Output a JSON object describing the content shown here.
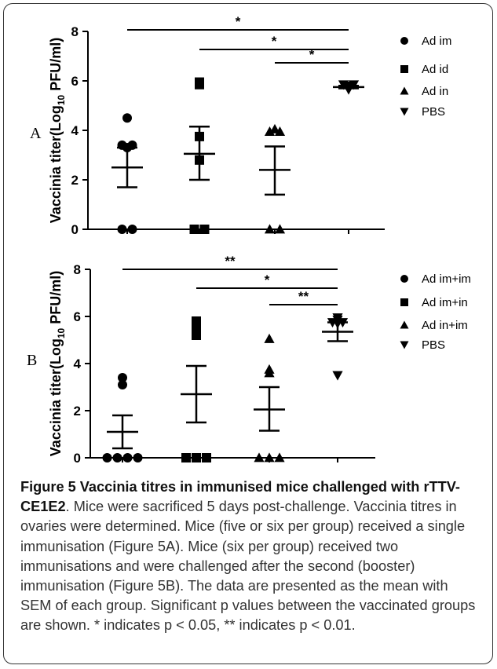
{
  "caption": {
    "title": "Figure 5 Vaccinia titres in immunised mice challenged with rTTV-CE1E2",
    "text": ". Mice were sacrificed 5 days post-challenge. Vaccinia titres in ovaries were determined. Mice (five or six per group) received a single immunisation (Figure 5A). Mice (six per group) received two immunisations and were challenged after the second (booster) immunisation (Figure 5B). The data are presented as the mean with SEM of each group. Significant p values between the vaccinated groups are shown. * indicates p < 0.05, ** indicates p < 0.01."
  },
  "chart_data": [
    {
      "type": "scatter",
      "panel_label": "A",
      "ylabel_prefix": "Vaccinia titer(Log",
      "ylabel_sub": "10",
      "ylabel_suffix": " PFU/ml)",
      "ylim": [
        0,
        8
      ],
      "yticks": [
        "0",
        "2",
        "4",
        "6",
        "8"
      ],
      "series": [
        {
          "name": "Ad im",
          "marker": "circle",
          "values": [
            4.5,
            3.4,
            3.4,
            3.3,
            0,
            0
          ],
          "mean": 2.5,
          "sem_low": 1.7,
          "sem_high": 3.3
        },
        {
          "name": "Ad id",
          "marker": "square",
          "values": [
            5.95,
            5.85,
            3.75,
            2.8,
            0,
            0
          ],
          "mean": 3.05,
          "sem_low": 2.0,
          "sem_high": 4.15
        },
        {
          "name": "Ad in",
          "marker": "triangle-up",
          "values": [
            3.95,
            3.95,
            4.05,
            0,
            0
          ],
          "mean": 2.4,
          "sem_low": 1.4,
          "sem_high": 3.35
        },
        {
          "name": "PBS",
          "marker": "triangle-down",
          "values": [
            5.85,
            5.85,
            5.8,
            5.75,
            5.7,
            5.65
          ],
          "mean": 5.75,
          "sem_low": 5.7,
          "sem_high": 5.8
        }
      ],
      "significance": [
        {
          "from": 0,
          "to": 3,
          "label": "*"
        },
        {
          "from": 1,
          "to": 3,
          "label": "*"
        },
        {
          "from": 2,
          "to": 3,
          "label": "*"
        }
      ]
    },
    {
      "type": "scatter",
      "panel_label": "B",
      "ylabel_prefix": "Vaccinia titer(Log",
      "ylabel_sub": "10",
      "ylabel_suffix": " PFU/ml)",
      "ylim": [
        0,
        8
      ],
      "yticks": [
        "0",
        "2",
        "4",
        "6",
        "8"
      ],
      "series": [
        {
          "name": "Ad im+im",
          "marker": "circle",
          "values": [
            3.4,
            3.1,
            0,
            0,
            0,
            0
          ],
          "mean": 1.1,
          "sem_low": 0.4,
          "sem_high": 1.8
        },
        {
          "name": "Ad im+in",
          "marker": "square",
          "values": [
            5.8,
            5.45,
            5.2,
            0,
            0,
            0
          ],
          "mean": 2.7,
          "sem_low": 1.5,
          "sem_high": 3.9
        },
        {
          "name": "Ad in+im",
          "marker": "triangle-up",
          "values": [
            5.05,
            3.75,
            3.6,
            0,
            0,
            0
          ],
          "mean": 2.05,
          "sem_low": 1.15,
          "sem_high": 3.0
        },
        {
          "name": "PBS",
          "marker": "triangle-down",
          "values": [
            5.95,
            5.85,
            5.75,
            5.75,
            5.7,
            3.5
          ],
          "mean": 5.35,
          "sem_low": 4.95,
          "sem_high": 5.75
        }
      ],
      "significance": [
        {
          "from": 0,
          "to": 3,
          "label": "**"
        },
        {
          "from": 1,
          "to": 3,
          "label": "*"
        },
        {
          "from": 2,
          "to": 3,
          "label": "**"
        }
      ]
    }
  ]
}
